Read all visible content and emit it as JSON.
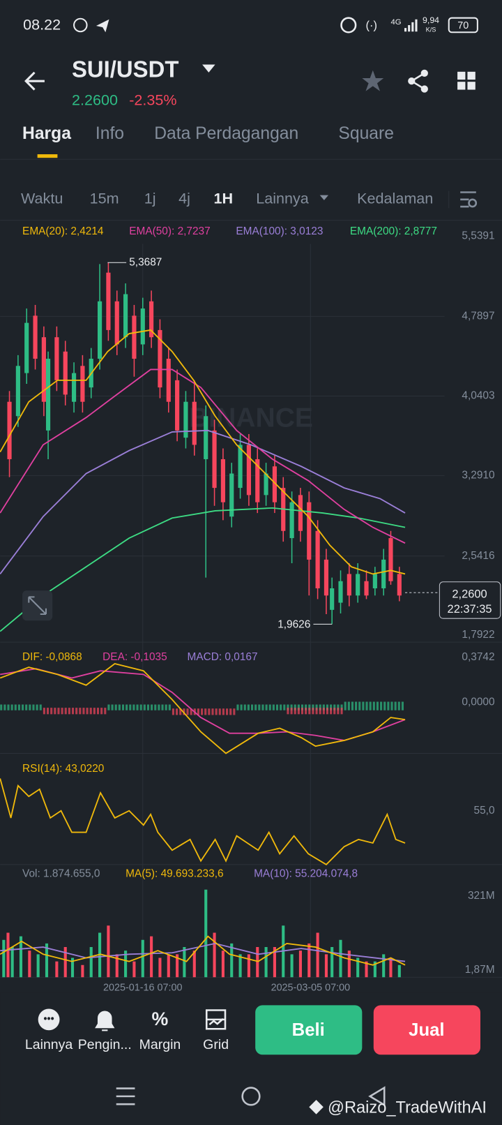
{
  "status_bar": {
    "time": "08.22",
    "network": "4G",
    "speed": "9,94",
    "speed_unit": "K/S",
    "battery": "70"
  },
  "header": {
    "pair": "SUI/USDT",
    "price": "2.2600",
    "change": "-2.35%"
  },
  "tabs": [
    "Harga",
    "Info",
    "Data Perdagangan",
    "Square"
  ],
  "timeframes": [
    "Waktu",
    "15m",
    "1j",
    "4j",
    "1H",
    "Lainnya",
    "Kedalaman"
  ],
  "main_chart": {
    "indicators": [
      "EMA(20): 2,4214",
      "EMA(50): 2,7237",
      "EMA(100): 3,0123",
      "EMA(200): 2,8777"
    ],
    "price_axis": [
      "5,5391",
      "4,7897",
      "4,0403",
      "3,2910",
      "2,5416",
      "1,7922"
    ],
    "high_label": "5,3687",
    "low_label": "1,9626",
    "current_price": "2,2600",
    "countdown": "22:37:35",
    "watermark": "BINANCE"
  },
  "macd": {
    "legend": [
      "DIF: -0,0868",
      "DEA: -0,1035",
      "MACD: 0,0167"
    ],
    "axis": [
      "0,3742",
      "0,0000"
    ]
  },
  "rsi": {
    "legend": "RSI(14): 43,0220",
    "axis": [
      "55,0"
    ]
  },
  "volume": {
    "legend": [
      "Vol: 1.874.655,0",
      "MA(5): 49.693.233,6",
      "MA(10): 55.204.074,8"
    ],
    "axis": [
      "321M",
      "1,87M"
    ]
  },
  "time_axis": [
    "2025-01-16 07:00",
    "2025-03-05 07:00"
  ],
  "toolbar": [
    "Lainnya",
    "Pengin...",
    "Margin",
    "Grid"
  ],
  "actions": {
    "buy": "Beli",
    "sell": "Jual"
  },
  "watermark": "@Raizo_TradeWithAI"
}
